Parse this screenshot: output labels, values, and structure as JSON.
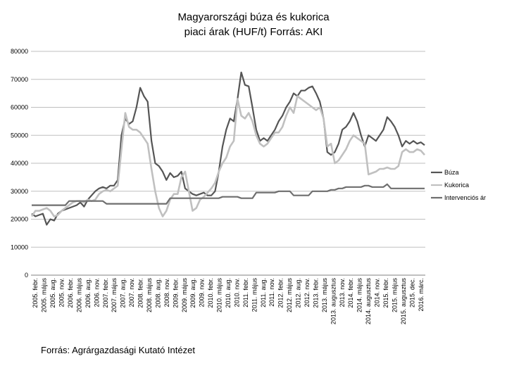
{
  "chart_data": {
    "type": "line",
    "title_line1": "Magyarországi búza és kukorica",
    "title_line2": "piaci árak (HUF/t) Forrás: AKI",
    "source": "Forrás: Agrárgazdasági Kutató Intézet",
    "ylim": [
      0,
      80000
    ],
    "yticks": [
      "0",
      "10000",
      "20000",
      "30000",
      "40000",
      "50000",
      "60000",
      "70000",
      "80000"
    ],
    "grid": true,
    "legend_position": "right",
    "x_labels": [
      "2005. febr.",
      "2005. május",
      "2005. aug.",
      "2005. nov.",
      "2006. febr.",
      "2006. május",
      "2006. aug.",
      "2006. nov.",
      "2007. febr.",
      "2007. május",
      "2007. aug.",
      "2007. nov.",
      "2008. febr.",
      "2008. május",
      "2008. aug.",
      "2008. nov.",
      "2009. febr.",
      "2009. május",
      "2009. aug.",
      "2009. nov.",
      "2010. febr.",
      "2010. május",
      "2010. aug.",
      "2010. nov.",
      "2011. febr.",
      "2011. május",
      "2011. aug.",
      "2011. nov.",
      "2012. febr.",
      "2012. május",
      "2012. aug.",
      "2012. nov.",
      "2013. febr.",
      "2013. május",
      "2013. augusztus",
      "2013. nov.",
      "2014. febr.",
      "2014. május",
      "2014. augusztus",
      "2014. nov.",
      "2015. febr.",
      "2015. május",
      "2015. augusztus",
      "2015. dec.",
      "2016. márc."
    ],
    "series": [
      {
        "name": "Búza",
        "color": "#555555",
        "values": [
          22000,
          21000,
          21500,
          22000,
          18000,
          20000,
          19500,
          22000,
          23000,
          23500,
          24000,
          24500,
          25000,
          26000,
          24500,
          27000,
          28500,
          30000,
          31000,
          31500,
          31000,
          32000,
          32000,
          34000,
          50000,
          56000,
          54000,
          55000,
          60000,
          67000,
          64000,
          62000,
          48000,
          40000,
          39000,
          37000,
          34000,
          36500,
          35000,
          35500,
          37000,
          31000,
          30000,
          29000,
          28500,
          29000,
          29500,
          28500,
          28500,
          30000,
          37000,
          46000,
          52000,
          56000,
          55000,
          63000,
          72500,
          68000,
          67500,
          60000,
          52000,
          48000,
          49000,
          48000,
          50000,
          52000,
          55000,
          57000,
          60000,
          62000,
          65000,
          64000,
          66000,
          66000,
          67000,
          67500,
          65000,
          62000,
          56000,
          44000,
          43000,
          44000,
          47000,
          52000,
          53000,
          55000,
          58000,
          55000,
          50000,
          46000,
          50000,
          49000,
          48000,
          50000,
          52000,
          56500,
          55000,
          53000,
          50000,
          46000,
          48000,
          47000,
          48000,
          47000,
          47500,
          46500
        ],
        "note": ""
      },
      {
        "name": "Kukorica",
        "color": "#c0c0c0",
        "values": [
          21000,
          23000,
          23000,
          23500,
          24000,
          23000,
          21000,
          21500,
          23000,
          24000,
          25000,
          26000,
          26500,
          26500,
          26000,
          27000,
          26500,
          27000,
          29000,
          30000,
          30500,
          30000,
          31000,
          32000,
          45000,
          58000,
          53000,
          52000,
          52000,
          51000,
          49000,
          47000,
          38000,
          30000,
          24000,
          21000,
          23000,
          27000,
          29000,
          29000,
          35000,
          37000,
          30000,
          23000,
          24000,
          27000,
          28000,
          29500,
          31000,
          33000,
          37000,
          40000,
          42000,
          46000,
          48000,
          63000,
          57000,
          56000,
          58000,
          55000,
          50000,
          47000,
          46000,
          47000,
          49000,
          51000,
          51000,
          53000,
          57000,
          60000,
          58000,
          64000,
          63000,
          62000,
          61000,
          60000,
          59000,
          60000,
          56000,
          46000,
          47000,
          40000,
          41000,
          43000,
          45000,
          48000,
          50000,
          49000,
          48000,
          47000,
          36000,
          36500,
          37000,
          38000,
          38000,
          38500,
          38000,
          38000,
          39000,
          44000,
          45000,
          44000,
          44000,
          45000,
          44500,
          43000
        ],
        "note": ""
      },
      {
        "name": "Intervenciós ár",
        "color": "#6e6e6e",
        "values": [
          25000,
          25000,
          25000,
          25000,
          25000,
          25000,
          25000,
          25000,
          25000,
          25000,
          26500,
          26500,
          26500,
          26500,
          26500,
          26500,
          26500,
          26500,
          26500,
          26500,
          25500,
          25500,
          25500,
          25500,
          25500,
          25500,
          25500,
          25500,
          25500,
          25500,
          25500,
          25500,
          25500,
          25500,
          25500,
          25500,
          25500,
          27500,
          27500,
          27500,
          27500,
          27500,
          27500,
          27500,
          27500,
          27500,
          27500,
          27500,
          27500,
          27500,
          27500,
          28000,
          28000,
          28000,
          28000,
          28000,
          27500,
          27500,
          27500,
          27500,
          29500,
          29500,
          29500,
          29500,
          29500,
          29500,
          30000,
          30000,
          30000,
          30000,
          28500,
          28500,
          28500,
          28500,
          28500,
          30000,
          30000,
          30000,
          30000,
          30000,
          30500,
          30500,
          31000,
          31000,
          31500,
          31500,
          31500,
          31500,
          31500,
          32000,
          32000,
          31500,
          31500,
          31500,
          31500,
          32500,
          31000,
          31000,
          31000,
          31000,
          31000,
          31000,
          31000,
          31000,
          31000,
          31000
        ],
        "note": ""
      }
    ]
  }
}
